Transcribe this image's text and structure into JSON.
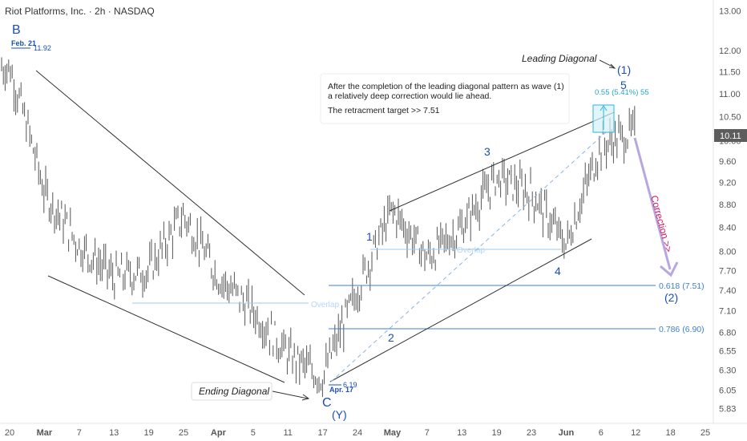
{
  "header": {
    "title": "Riot Platforms, Inc. · 2h · NASDAQ"
  },
  "colors": {
    "bar": "#555555",
    "trendline": "#333333",
    "wave_label": "#1a4fb0",
    "fib_line": "#3d7fd6",
    "overlap_line": "#9ecbf2",
    "target_box": "#29b6d6",
    "correction_arrow": "#b8a6e0",
    "correction_text": "#d81b60",
    "price_badge": "#5d5d5d"
  },
  "chart_data": {
    "type": "bar",
    "subtype": "ohlc-price-chart",
    "title": "Riot Platforms, Inc. · 2h · NASDAQ",
    "y_scale": "log",
    "ylim": [
      5.75,
      13.2
    ],
    "y_ticks": [
      "13.00",
      "12.00",
      "11.50",
      "11.00",
      "10.50",
      "10.00",
      "9.60",
      "9.20",
      "8.80",
      "8.40",
      "8.00",
      "7.70",
      "7.40",
      "7.10",
      "6.80",
      "6.55",
      "6.30",
      "6.05",
      "5.83"
    ],
    "x_ticks": [
      "20",
      "Mar",
      "7",
      "13",
      "19",
      "25",
      "Apr",
      "5",
      "11",
      "17",
      "24",
      "May",
      "7",
      "13",
      "19",
      "23",
      "Jun",
      "6",
      "12",
      "18",
      "25"
    ],
    "last_price": "10.11",
    "price_path": [
      [
        "20",
        11.6
      ],
      [
        "Mar",
        9.0
      ],
      [
        "7",
        8.1
      ],
      [
        "13",
        7.6
      ],
      [
        "19",
        7.7
      ],
      [
        "25",
        8.6
      ],
      [
        "Apr",
        7.6
      ],
      [
        "5",
        7.1
      ],
      [
        "11",
        6.5
      ],
      [
        "17",
        6.2
      ],
      [
        "24",
        7.4
      ],
      [
        "May",
        8.7
      ],
      [
        "7",
        7.9
      ],
      [
        "13",
        8.4
      ],
      [
        "19",
        9.3
      ],
      [
        "23",
        9.0
      ],
      [
        "Jun",
        8.1
      ],
      [
        "6",
        9.9
      ],
      [
        "12",
        10.2
      ]
    ],
    "markers": {
      "feb21": {
        "date_label": "Feb. 21",
        "price": "11.92"
      },
      "apr17": {
        "date_label": "Apr. 17",
        "price": "6.19"
      }
    },
    "wave_labels": [
      "B",
      "C",
      "(Y)",
      "1",
      "2",
      "3",
      "4",
      "5",
      "(1)",
      "(2)"
    ],
    "annotations": {
      "leading_diagonal": "Leading Diagonal",
      "ending_diagonal": "Ending Diagonal",
      "overlap": "Overlap",
      "target_box": "0.55 (5.41%) 55",
      "fib_618": "0.618 (7.51)",
      "fib_786": "0.786 (6.90)",
      "correction": "Correction >>",
      "note_line1": "After the completion of the leading diagonal pattern as wave (1)",
      "note_line2": "a relatively deep correction would lie ahead.",
      "note_line3": "The retracment target >> 7.51"
    },
    "fib_levels": [
      {
        "label": "0.618 (7.51)",
        "value": 7.51
      },
      {
        "label": "0.786 (6.90)",
        "value": 6.9
      }
    ],
    "grid": false,
    "legend": "none"
  }
}
